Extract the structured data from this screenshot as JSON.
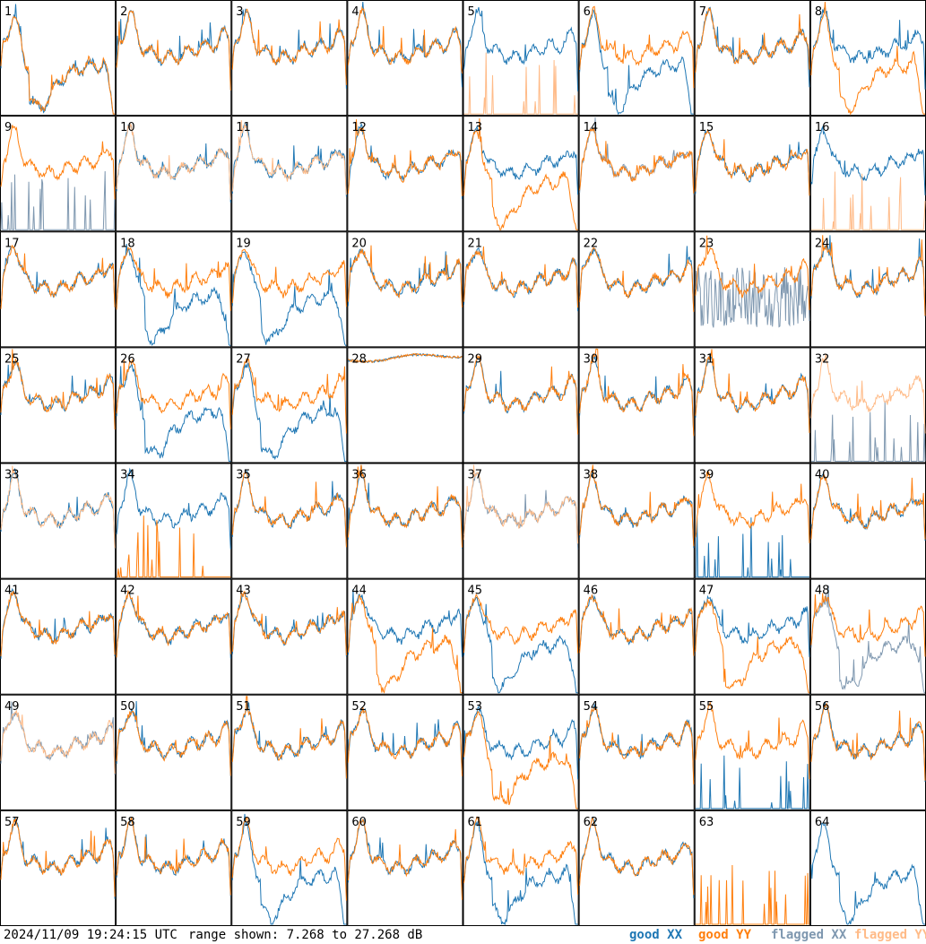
{
  "footer": {
    "timestamp": "2024/11/09 19:24:15 UTC",
    "range_text": "range shown: 7.268 to 27.268 dB"
  },
  "legend": [
    {
      "label": "good XX",
      "color": "#1f77b4"
    },
    {
      "label": "good YY",
      "color": "#ff7f0e"
    },
    {
      "label": "flagged XX",
      "color": "#7f98b0"
    },
    {
      "label": "flagged YY",
      "color": "#ffbb88"
    }
  ],
  "chart_data": {
    "type": "line",
    "ylim": [
      7.268,
      27.268
    ],
    "grid": {
      "rows": 8,
      "cols": 8
    },
    "panels": [
      {
        "label": "1",
        "xx": "drop",
        "yy": "drop",
        "xx_flag": false,
        "yy_flag": false
      },
      {
        "label": "2",
        "xx": "normal",
        "yy": "normal",
        "xx_flag": false,
        "yy_flag": false
      },
      {
        "label": "3",
        "xx": "normal",
        "yy": "normal",
        "xx_flag": false,
        "yy_flag": false
      },
      {
        "label": "4",
        "xx": "normal",
        "yy": "normal",
        "xx_flag": false,
        "yy_flag": false
      },
      {
        "label": "5",
        "xx": "normal",
        "yy": "spiky",
        "xx_flag": false,
        "yy_flag": true
      },
      {
        "label": "6",
        "xx": "drop",
        "yy": "normal",
        "xx_flag": false,
        "yy_flag": false
      },
      {
        "label": "7",
        "xx": "normal",
        "yy": "normal",
        "xx_flag": false,
        "yy_flag": false
      },
      {
        "label": "8",
        "xx": "normal",
        "yy": "drop",
        "xx_flag": false,
        "yy_flag": false
      },
      {
        "label": "9",
        "xx": "spiky",
        "yy": "normal",
        "xx_flag": true,
        "yy_flag": false
      },
      {
        "label": "10",
        "xx": "normal",
        "yy": "normal",
        "xx_flag": false,
        "yy_flag": true
      },
      {
        "label": "11",
        "xx": "normal",
        "yy": "normal",
        "xx_flag": false,
        "yy_flag": true
      },
      {
        "label": "12",
        "xx": "normal",
        "yy": "normal",
        "xx_flag": false,
        "yy_flag": false
      },
      {
        "label": "13",
        "xx": "normal",
        "yy": "drop",
        "xx_flag": false,
        "yy_flag": false
      },
      {
        "label": "14",
        "xx": "normal",
        "yy": "normal",
        "xx_flag": true,
        "yy_flag": false
      },
      {
        "label": "15",
        "xx": "normal",
        "yy": "normal",
        "xx_flag": false,
        "yy_flag": false
      },
      {
        "label": "16",
        "xx": "normal",
        "yy": "spiky",
        "xx_flag": false,
        "yy_flag": true
      },
      {
        "label": "17",
        "xx": "normal",
        "yy": "normal",
        "xx_flag": false,
        "yy_flag": false
      },
      {
        "label": "18",
        "xx": "drop",
        "yy": "normal",
        "xx_flag": false,
        "yy_flag": false
      },
      {
        "label": "19",
        "xx": "drop",
        "yy": "normal",
        "xx_flag": false,
        "yy_flag": false
      },
      {
        "label": "20",
        "xx": "normal",
        "yy": "normal",
        "xx_flag": false,
        "yy_flag": false
      },
      {
        "label": "21",
        "xx": "normal",
        "yy": "normal",
        "xx_flag": false,
        "yy_flag": false
      },
      {
        "label": "22",
        "xx": "normal",
        "yy": "normal",
        "xx_flag": false,
        "yy_flag": false
      },
      {
        "label": "23",
        "xx": "noisy",
        "yy": "normal",
        "xx_flag": true,
        "yy_flag": false
      },
      {
        "label": "24",
        "xx": "normal",
        "yy": "normal",
        "xx_flag": false,
        "yy_flag": false
      },
      {
        "label": "25",
        "xx": "normal",
        "yy": "normal",
        "xx_flag": false,
        "yy_flag": false
      },
      {
        "label": "26",
        "xx": "drop",
        "yy": "normal",
        "xx_flag": false,
        "yy_flag": false
      },
      {
        "label": "27",
        "xx": "drop",
        "yy": "normal",
        "xx_flag": false,
        "yy_flag": false
      },
      {
        "label": "28",
        "xx": "flat",
        "yy": "flat",
        "xx_flag": false,
        "yy_flag": false
      },
      {
        "label": "29",
        "xx": "normal",
        "yy": "normal",
        "xx_flag": false,
        "yy_flag": false
      },
      {
        "label": "30",
        "xx": "normal",
        "yy": "normal",
        "xx_flag": false,
        "yy_flag": false
      },
      {
        "label": "31",
        "xx": "normal",
        "yy": "normal",
        "xx_flag": false,
        "yy_flag": false
      },
      {
        "label": "32",
        "xx": "spiky",
        "yy": "normal",
        "xx_flag": true,
        "yy_flag": true
      },
      {
        "label": "33",
        "xx": "normal",
        "yy": "normal",
        "xx_flag": false,
        "yy_flag": true
      },
      {
        "label": "34",
        "xx": "normal",
        "yy": "spiky",
        "xx_flag": false,
        "yy_flag": false
      },
      {
        "label": "35",
        "xx": "normal",
        "yy": "normal",
        "xx_flag": false,
        "yy_flag": false
      },
      {
        "label": "36",
        "xx": "normal",
        "yy": "normal",
        "xx_flag": false,
        "yy_flag": false
      },
      {
        "label": "37",
        "xx": "normal",
        "yy": "normal",
        "xx_flag": true,
        "yy_flag": true
      },
      {
        "label": "38",
        "xx": "normal",
        "yy": "normal",
        "xx_flag": false,
        "yy_flag": false
      },
      {
        "label": "39",
        "xx": "spiky",
        "yy": "normal",
        "xx_flag": false,
        "yy_flag": false
      },
      {
        "label": "40",
        "xx": "normal",
        "yy": "normal",
        "xx_flag": false,
        "yy_flag": false
      },
      {
        "label": "41",
        "xx": "normal",
        "yy": "normal",
        "xx_flag": false,
        "yy_flag": false
      },
      {
        "label": "42",
        "xx": "normal",
        "yy": "normal",
        "xx_flag": false,
        "yy_flag": false
      },
      {
        "label": "43",
        "xx": "normal",
        "yy": "normal",
        "xx_flag": false,
        "yy_flag": false
      },
      {
        "label": "44",
        "xx": "normal",
        "yy": "drop",
        "xx_flag": false,
        "yy_flag": false
      },
      {
        "label": "45",
        "xx": "drop",
        "yy": "normal",
        "xx_flag": false,
        "yy_flag": false
      },
      {
        "label": "46",
        "xx": "normal",
        "yy": "normal",
        "xx_flag": false,
        "yy_flag": false
      },
      {
        "label": "47",
        "xx": "normal",
        "yy": "drop",
        "xx_flag": false,
        "yy_flag": false
      },
      {
        "label": "48",
        "xx": "drop",
        "yy": "normal",
        "xx_flag": true,
        "yy_flag": false
      },
      {
        "label": "49",
        "xx": "normal",
        "yy": "normal",
        "xx_flag": true,
        "yy_flag": true
      },
      {
        "label": "50",
        "xx": "normal",
        "yy": "normal",
        "xx_flag": false,
        "yy_flag": false
      },
      {
        "label": "51",
        "xx": "normal",
        "yy": "normal",
        "xx_flag": false,
        "yy_flag": false
      },
      {
        "label": "52",
        "xx": "normal",
        "yy": "normal",
        "xx_flag": false,
        "yy_flag": false
      },
      {
        "label": "53",
        "xx": "normal",
        "yy": "drop",
        "xx_flag": false,
        "yy_flag": false
      },
      {
        "label": "54",
        "xx": "normal",
        "yy": "normal",
        "xx_flag": false,
        "yy_flag": false
      },
      {
        "label": "55",
        "xx": "spiky",
        "yy": "normal",
        "xx_flag": false,
        "yy_flag": false
      },
      {
        "label": "56",
        "xx": "normal",
        "yy": "normal",
        "xx_flag": false,
        "yy_flag": false
      },
      {
        "label": "57",
        "xx": "normal",
        "yy": "normal",
        "xx_flag": false,
        "yy_flag": false
      },
      {
        "label": "58",
        "xx": "normal",
        "yy": "normal",
        "xx_flag": false,
        "yy_flag": false
      },
      {
        "label": "59",
        "xx": "drop",
        "yy": "normal",
        "xx_flag": false,
        "yy_flag": false
      },
      {
        "label": "60",
        "xx": "normal",
        "yy": "normal",
        "xx_flag": false,
        "yy_flag": false
      },
      {
        "label": "61",
        "xx": "drop",
        "yy": "normal",
        "xx_flag": false,
        "yy_flag": false
      },
      {
        "label": "62",
        "xx": "normal",
        "yy": "normal",
        "xx_flag": false,
        "yy_flag": false
      },
      {
        "label": "63",
        "xx": "none",
        "yy": "spiky",
        "xx_flag": false,
        "yy_flag": false
      },
      {
        "label": "64",
        "xx": "drop",
        "yy": "none",
        "xx_flag": false,
        "yy_flag": false
      }
    ]
  }
}
